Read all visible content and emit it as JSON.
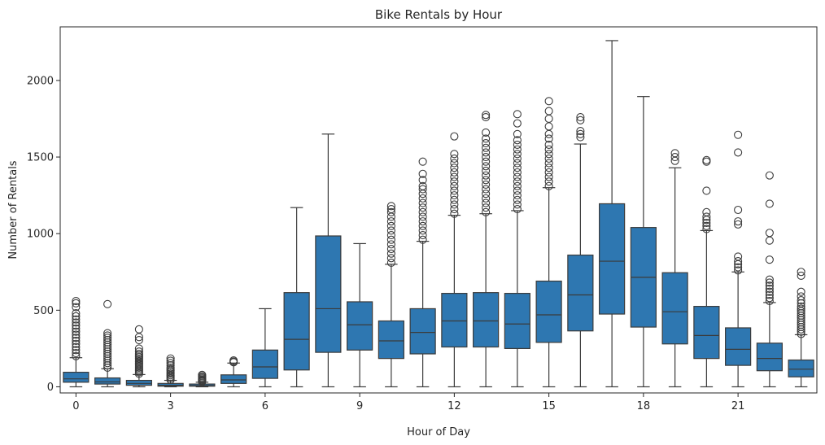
{
  "chart_data": {
    "type": "boxplot",
    "title": "Bike Rentals by Hour",
    "xlabel": "Hour of Day",
    "ylabel": "Number of Rentals",
    "ylim": [
      -40,
      2350
    ],
    "y_ticks": [
      0,
      500,
      1000,
      1500,
      2000
    ],
    "x_ticks": [
      0,
      3,
      6,
      9,
      12,
      15,
      18,
      21
    ],
    "grid": false,
    "box_color": "#2e77b1",
    "edge_color": "#3b3b3b",
    "boxes": [
      {
        "hour": 0,
        "low": 0,
        "q1": 30,
        "median": 52,
        "q3": 95,
        "high": 190,
        "outliers": [
          200,
          220,
          240,
          260,
          280,
          300,
          320,
          340,
          360,
          380,
          400,
          420,
          440,
          460,
          480,
          520,
          545,
          560
        ]
      },
      {
        "hour": 1,
        "low": 0,
        "q1": 18,
        "median": 32,
        "q3": 58,
        "high": 118,
        "outliers": [
          125,
          140,
          155,
          170,
          185,
          200,
          215,
          230,
          245,
          260,
          275,
          290,
          305,
          320,
          335,
          350,
          540
        ]
      },
      {
        "hour": 2,
        "low": 0,
        "q1": 10,
        "median": 22,
        "q3": 42,
        "high": 80,
        "outliers": [
          85,
          95,
          105,
          115,
          125,
          135,
          145,
          155,
          165,
          175,
          185,
          195,
          205,
          215,
          230,
          250,
          305,
          325,
          375
        ]
      },
      {
        "hour": 3,
        "low": 0,
        "q1": 4,
        "median": 10,
        "q3": 22,
        "high": 42,
        "outliers": [
          45,
          55,
          65,
          75,
          85,
          95,
          105,
          115,
          125,
          140,
          155,
          170,
          185
        ]
      },
      {
        "hour": 4,
        "low": 0,
        "q1": 4,
        "median": 8,
        "q3": 18,
        "high": 30,
        "outliers": [
          33,
          38,
          43,
          48,
          55,
          62,
          70,
          78
        ]
      },
      {
        "hour": 5,
        "low": 0,
        "q1": 22,
        "median": 45,
        "q3": 78,
        "high": 155,
        "outliers": [
          160,
          165,
          172
        ]
      },
      {
        "hour": 6,
        "low": 0,
        "q1": 55,
        "median": 130,
        "q3": 240,
        "high": 510,
        "outliers": []
      },
      {
        "hour": 7,
        "low": 0,
        "q1": 110,
        "median": 310,
        "q3": 615,
        "high": 1170,
        "outliers": []
      },
      {
        "hour": 8,
        "low": 0,
        "q1": 225,
        "median": 510,
        "q3": 985,
        "high": 1650,
        "outliers": []
      },
      {
        "hour": 9,
        "low": 0,
        "q1": 240,
        "median": 405,
        "q3": 555,
        "high": 935,
        "outliers": []
      },
      {
        "hour": 10,
        "low": 0,
        "q1": 185,
        "median": 300,
        "q3": 430,
        "high": 800,
        "outliers": [
          810,
          840,
          870,
          900,
          930,
          960,
          990,
          1020,
          1050,
          1080,
          1110,
          1140,
          1160,
          1180
        ]
      },
      {
        "hour": 11,
        "low": 0,
        "q1": 215,
        "median": 355,
        "q3": 510,
        "high": 950,
        "outliers": [
          960,
          990,
          1020,
          1050,
          1080,
          1110,
          1140,
          1170,
          1200,
          1230,
          1260,
          1290,
          1310,
          1350,
          1390,
          1470
        ]
      },
      {
        "hour": 12,
        "low": 0,
        "q1": 260,
        "median": 430,
        "q3": 610,
        "high": 1120,
        "outliers": [
          1130,
          1160,
          1190,
          1220,
          1250,
          1280,
          1310,
          1340,
          1370,
          1400,
          1430,
          1460,
          1490,
          1520,
          1635
        ]
      },
      {
        "hour": 13,
        "low": 0,
        "q1": 260,
        "median": 430,
        "q3": 615,
        "high": 1130,
        "outliers": [
          1140,
          1170,
          1200,
          1230,
          1260,
          1290,
          1320,
          1350,
          1380,
          1410,
          1440,
          1470,
          1500,
          1530,
          1560,
          1590,
          1620,
          1660,
          1760,
          1775
        ]
      },
      {
        "hour": 14,
        "low": 0,
        "q1": 250,
        "median": 410,
        "q3": 610,
        "high": 1150,
        "outliers": [
          1160,
          1190,
          1220,
          1250,
          1280,
          1310,
          1340,
          1370,
          1400,
          1430,
          1460,
          1490,
          1520,
          1550,
          1580,
          1610,
          1650,
          1720,
          1780
        ]
      },
      {
        "hour": 15,
        "low": 0,
        "q1": 290,
        "median": 470,
        "q3": 690,
        "high": 1300,
        "outliers": [
          1310,
          1340,
          1370,
          1400,
          1430,
          1460,
          1490,
          1520,
          1550,
          1580,
          1620,
          1650,
          1700,
          1750,
          1800,
          1865
        ]
      },
      {
        "hour": 16,
        "low": 0,
        "q1": 365,
        "median": 600,
        "q3": 860,
        "high": 1585,
        "outliers": [
          1630,
          1650,
          1670,
          1740,
          1760
        ]
      },
      {
        "hour": 17,
        "low": 0,
        "q1": 475,
        "median": 820,
        "q3": 1195,
        "high": 2260,
        "outliers": []
      },
      {
        "hour": 18,
        "low": 0,
        "q1": 390,
        "median": 715,
        "q3": 1040,
        "high": 1895,
        "outliers": []
      },
      {
        "hour": 19,
        "low": 0,
        "q1": 280,
        "median": 490,
        "q3": 745,
        "high": 1430,
        "outliers": [
          1475,
          1500,
          1525
        ]
      },
      {
        "hour": 20,
        "low": 0,
        "q1": 185,
        "median": 335,
        "q3": 525,
        "high": 1020,
        "outliers": [
          1030,
          1050,
          1070,
          1090,
          1110,
          1140,
          1280,
          1470,
          1480
        ]
      },
      {
        "hour": 21,
        "low": 0,
        "q1": 140,
        "median": 245,
        "q3": 385,
        "high": 750,
        "outliers": [
          760,
          780,
          800,
          820,
          850,
          1060,
          1080,
          1155,
          1530,
          1645
        ]
      },
      {
        "hour": 22,
        "low": 0,
        "q1": 105,
        "median": 185,
        "q3": 285,
        "high": 550,
        "outliers": [
          560,
          580,
          600,
          620,
          640,
          660,
          680,
          700,
          830,
          955,
          1005,
          1195,
          1380
        ]
      },
      {
        "hour": 23,
        "low": 0,
        "q1": 65,
        "median": 115,
        "q3": 175,
        "high": 340,
        "outliers": [
          345,
          360,
          375,
          390,
          405,
          420,
          435,
          450,
          465,
          480,
          495,
          510,
          525,
          545,
          565,
          590,
          620,
          725,
          750
        ]
      }
    ]
  }
}
